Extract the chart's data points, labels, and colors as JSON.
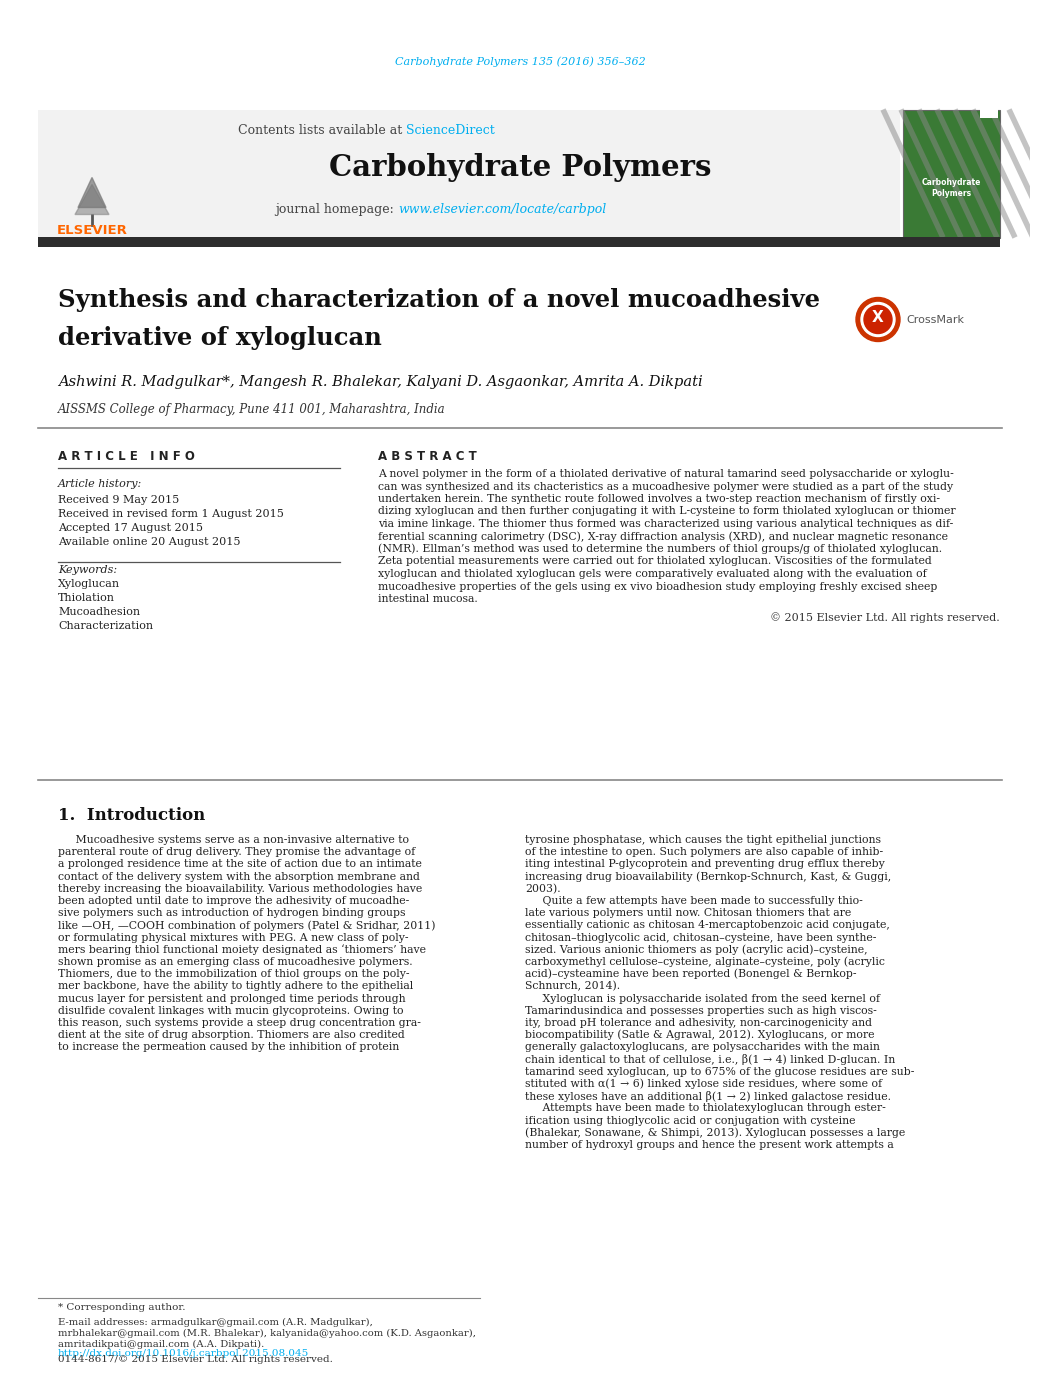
{
  "journal_ref": "Carbohydrate Polymers 135 (2016) 356–362",
  "journal_ref_color": "#00AEEF",
  "contents_text": "Contents lists available at ",
  "sciencedirect_text": "ScienceDirect",
  "sciencedirect_color": "#00AEEF",
  "journal_name": "Carbohydrate Polymers",
  "journal_homepage_prefix": "journal homepage: ",
  "journal_homepage_url": "www.elsevier.com/locate/carbpol",
  "journal_homepage_color": "#00AEEF",
  "header_bg": "#f2f2f2",
  "dark_bar_color": "#2d2d2d",
  "article_title_line1": "Synthesis and characterization of a novel mucoadhesive",
  "article_title_line2": "derivative of xyloglucan",
  "authors": "Ashwini R. Madgulkar*, Mangesh R. Bhalekar, Kalyani D. Asgaonkar, Amrita A. Dikpati",
  "affiliation": "AISSMS College of Pharmacy, Pune 411 001, Maharashtra, India",
  "article_info_title": "A R T I C L E   I N F O",
  "article_history_label": "Article history:",
  "received_text": "Received 9 May 2015",
  "revised_text": "Received in revised form 1 August 2015",
  "accepted_text": "Accepted 17 August 2015",
  "available_text": "Available online 20 August 2015",
  "keywords_label": "Keywords:",
  "keywords": [
    "Xyloglucan",
    "Thiolation",
    "Mucoadhesion",
    "Characterization"
  ],
  "abstract_title": "A B S T R A C T",
  "abstract_lines": [
    "A novel polymer in the form of a thiolated derivative of natural tamarind seed polysaccharide or xyloglu-",
    "can was synthesized and its chacteristics as a mucoadhesive polymer were studied as a part of the study",
    "undertaken herein. The synthetic route followed involves a two-step reaction mechanism of firstly oxi-",
    "dizing xyloglucan and then further conjugating it with L-cysteine to form thiolated xyloglucan or thiomer",
    "via imine linkage. The thiomer thus formed was characterized using various analytical techniques as dif-",
    "ferential scanning calorimetry (DSC), X-ray diffraction analysis (XRD), and nuclear magnetic resonance",
    "(NMR). Ellman’s method was used to determine the numbers of thiol groups/g of thiolated xyloglucan.",
    "Zeta potential measurements were carried out for thiolated xyloglucan. Viscosities of the formulated",
    "xyloglucan and thiolated xyloglucan gels were comparatively evaluated along with the evaluation of",
    "mucoadhesive properties of the gels using ex vivo bioadhesion study employing freshly excised sheep",
    "intestinal mucosa."
  ],
  "copyright_text": "© 2015 Elsevier Ltd. All rights reserved.",
  "intro_title": "1.  Introduction",
  "intro_col1_lines": [
    "     Mucoadhesive systems serve as a non-invasive alternative to",
    "parenteral route of drug delivery. They promise the advantage of",
    "a prolonged residence time at the site of action due to an intimate",
    "contact of the delivery system with the absorption membrane and",
    "thereby increasing the bioavailability. Various methodologies have",
    "been adopted until date to improve the adhesivity of mucoadhe-",
    "sive polymers such as introduction of hydrogen binding groups",
    "like —OH, —COOH combination of polymers (Patel & Sridhar, 2011)",
    "or formulating physical mixtures with PEG. A new class of poly-",
    "mers bearing thiol functional moiety designated as ‘thiomers’ have",
    "shown promise as an emerging class of mucoadhesive polymers.",
    "Thiomers, due to the immobilization of thiol groups on the poly-",
    "mer backbone, have the ability to tightly adhere to the epithelial",
    "mucus layer for persistent and prolonged time periods through",
    "disulfide covalent linkages with mucin glycoproteins. Owing to",
    "this reason, such systems provide a steep drug concentration gra-",
    "dient at the site of drug absorption. Thiomers are also credited",
    "to increase the permeation caused by the inhibition of protein"
  ],
  "intro_col2_lines": [
    "tyrosine phosphatase, which causes the tight epithelial junctions",
    "of the intestine to open. Such polymers are also capable of inhib-",
    "iting intestinal P-glycoprotein and preventing drug efflux thereby",
    "increasing drug bioavailability (Bernkop-Schnurch, Kast, & Guggi,",
    "2003).",
    "     Quite a few attempts have been made to successfully thio-",
    "late various polymers until now. Chitosan thiomers that are",
    "essentially cationic as chitosan 4-mercaptobenzoic acid conjugate,",
    "chitosan–thioglycolic acid, chitosan–cysteine, have been synthe-",
    "sized. Various anionic thiomers as poly (acrylic acid)–cysteine,",
    "carboxymethyl cellulose–cysteine, alginate–cysteine, poly (acrylic",
    "acid)–cysteamine have been reported (Bonengel & Bernkop-",
    "Schnurch, 2014).",
    "     Xyloglucan is polysaccharide isolated from the seed kernel of",
    "Tamarindusindica and possesses properties such as high viscos-",
    "ity, broad pH tolerance and adhesivity, non-carcinogenicity and",
    "biocompatibility (Satle & Agrawal, 2012). Xyloglucans, or more",
    "generally galactoxyloglucans, are polysaccharides with the main",
    "chain identical to that of cellulose, i.e., β(1 → 4) linked D-glucan. In",
    "tamarind seed xyloglucan, up to 675% of the glucose residues are sub-",
    "stituted with α(1 → 6) linked xylose side residues, where some of",
    "these xyloses have an additional β(1 → 2) linked galactose residue.",
    "     Attempts have been made to thiolatexyloglucan through ester-",
    "ification using thioglycolic acid or conjugation with cysteine",
    "(Bhalekar, Sonawane, & Shimpi, 2013). Xyloglucan possesses a large",
    "number of hydroxyl groups and hence the present work attempts a"
  ],
  "footnote_star": "* Corresponding author.",
  "footnote_emails": "E-mail addresses: armadgulkar@gmail.com (A.R. Madgulkar),",
  "footnote_email2": "mrbhalekar@gmail.com (M.R. Bhalekar), kalyanida@yahoo.com (K.D. Asgaonkar),",
  "footnote_email3": "amritadikpati@gmail.com (A.A. Dikpati).",
  "doi_text": "http://dx.doi.org/10.1016/j.carbpol.2015.08.045",
  "issn_text": "0144-8617/© 2015 Elsevier Ltd. All rights reserved.",
  "bg_color": "#ffffff",
  "text_color": "#000000",
  "link_color": "#00AEEF"
}
